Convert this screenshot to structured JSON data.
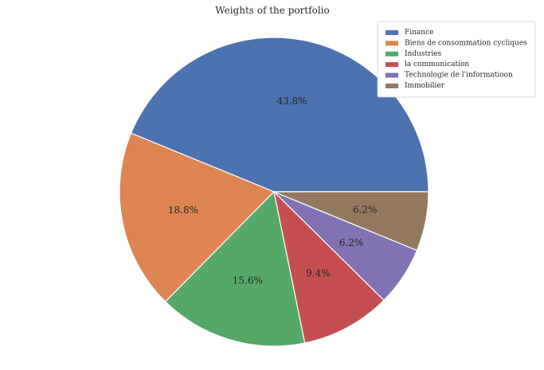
{
  "chart_data": {
    "type": "pie",
    "title": "Weights of the portfolio",
    "categories": [
      "Finance",
      "Biens de consommation cycliques",
      "Industries",
      "la communication",
      "Technologie de l'informatioon",
      "Immobilier"
    ],
    "values": [
      43.8,
      18.8,
      15.6,
      9.4,
      6.2,
      6.2
    ],
    "labels": [
      "43.8%",
      "18.8%",
      "15.6%",
      "9.4%",
      "6.2%",
      "6.2%"
    ],
    "colors": [
      "#4c72b0",
      "#dd8452",
      "#55a868",
      "#c44e52",
      "#8172b3",
      "#937860"
    ],
    "start_angle_deg": 0,
    "direction": "counterclockwise",
    "legend_position": "upper-right"
  }
}
